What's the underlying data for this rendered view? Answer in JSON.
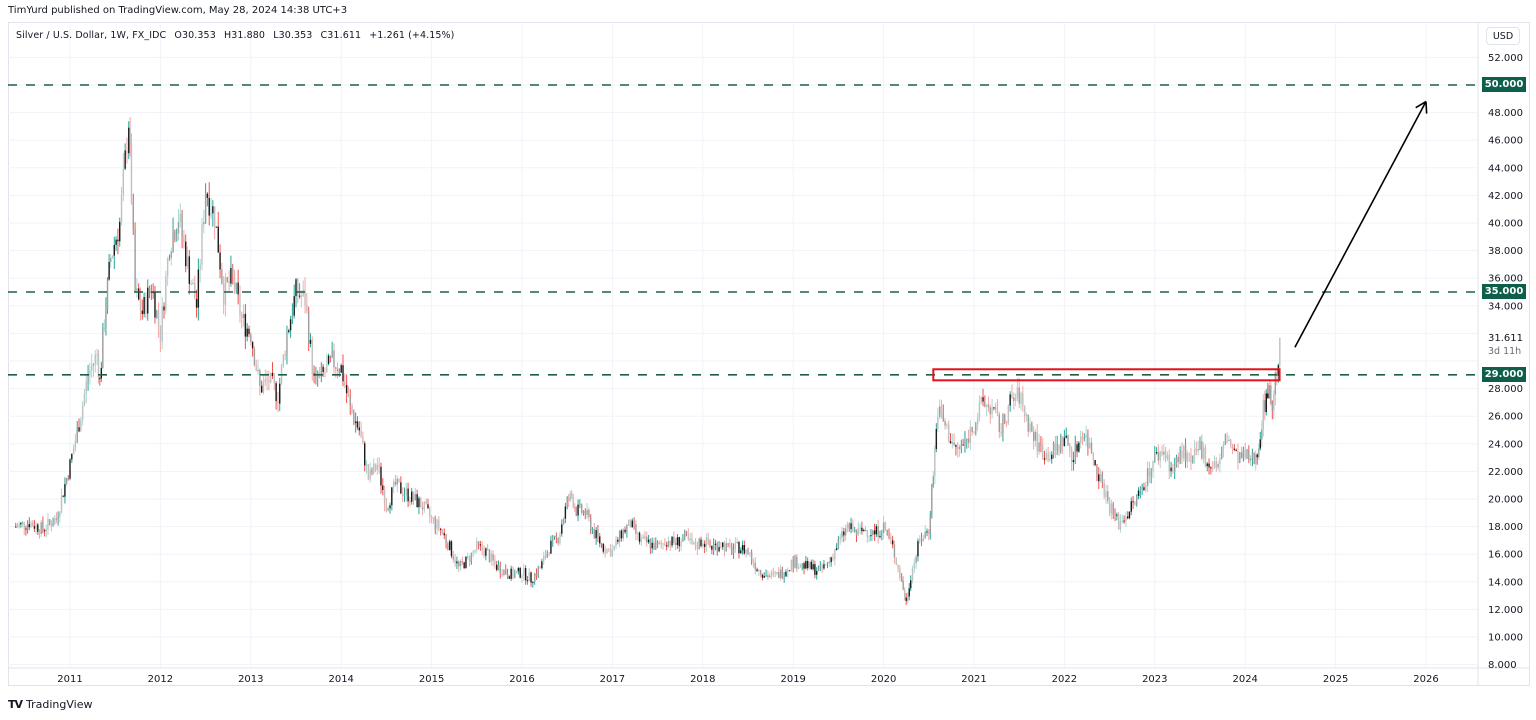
{
  "header": {
    "publisher_line": "TimYurd published on TradingView.com, May 28, 2024 14:38 UTC+3"
  },
  "legend": {
    "symbol": "Silver / U.S. Dollar, 1W, FX_IDC",
    "open": "O30.353",
    "high": "H31.880",
    "low": "L30.353",
    "close": "C31.611",
    "change": "+1.261 (+4.15%)"
  },
  "price_axis": {
    "currency_button": "USD",
    "ticks": [
      "52.000",
      "50.000",
      "48.000",
      "46.000",
      "44.000",
      "42.000",
      "40.000",
      "38.000",
      "36.000",
      "34.000",
      "32.000",
      "30.000",
      "28.000",
      "26.000",
      "24.000",
      "22.000",
      "20.000",
      "18.000",
      "16.000",
      "14.000",
      "12.000",
      "10.000",
      "8.000"
    ],
    "last_price": "31.611",
    "countdown": "3d 11h",
    "level_badges": [
      {
        "label": "50.000",
        "value": 50
      },
      {
        "label": "35.000",
        "value": 35
      },
      {
        "label": "29.000",
        "value": 29
      }
    ]
  },
  "time_axis": {
    "ticks": [
      "2011",
      "2012",
      "2013",
      "2014",
      "2015",
      "2016",
      "2017",
      "2018",
      "2019",
      "2020",
      "2021",
      "2022",
      "2023",
      "2024",
      "2025",
      "2026"
    ]
  },
  "footer": {
    "logo_text": "TV",
    "brand": "TradingView"
  },
  "colors": {
    "up": "#26a69a",
    "down": "#ef5350",
    "neutral_body": "#9e9e9e",
    "level_line": "#1e5e4a",
    "badge_bg": "#0e5e4b",
    "zone_border": "#e3111b",
    "arrow": "#000000",
    "grid": "#f0f3fa"
  },
  "chart_data": {
    "type": "candlestick",
    "title": "Silver / U.S. Dollar, 1W, FX_IDC",
    "xlabel": "",
    "ylabel": "USD",
    "ylim": [
      8,
      52
    ],
    "grid": true,
    "legend_position": "top-left",
    "last": {
      "open": 30.353,
      "high": 31.88,
      "low": 30.353,
      "close": 31.611,
      "change": 1.261,
      "change_pct": 4.15
    },
    "horizontal_levels": [
      50,
      35,
      29
    ],
    "resistance_zone": {
      "x_start": "2020.55",
      "x_end": "2024.38",
      "y_low": 28.6,
      "y_high": 29.4
    },
    "arrow": {
      "from": {
        "t": 2024.55,
        "p": 31.0
      },
      "to": {
        "t": 2026.0,
        "p": 48.8
      }
    },
    "approx_series": {
      "t": [
        2010.4,
        2010.55,
        2010.7,
        2010.85,
        2011.0,
        2011.1,
        2011.2,
        2011.3,
        2011.33,
        2011.38,
        2011.45,
        2011.55,
        2011.65,
        2011.68,
        2011.72,
        2011.8,
        2011.9,
        2012.0,
        2012.1,
        2012.2,
        2012.3,
        2012.4,
        2012.5,
        2012.6,
        2012.7,
        2012.8,
        2012.9,
        2013.0,
        2013.1,
        2013.2,
        2013.3,
        2013.4,
        2013.5,
        2013.6,
        2013.7,
        2013.8,
        2013.9,
        2014.0,
        2014.1,
        2014.2,
        2014.3,
        2014.4,
        2014.5,
        2014.6,
        2014.7,
        2014.8,
        2014.9,
        2015.0,
        2015.1,
        2015.2,
        2015.3,
        2015.4,
        2015.5,
        2015.6,
        2015.7,
        2015.8,
        2015.9,
        2016.0,
        2016.1,
        2016.2,
        2016.3,
        2016.4,
        2016.5,
        2016.55,
        2016.6,
        2016.7,
        2016.8,
        2016.9,
        2017.0,
        2017.1,
        2017.2,
        2017.3,
        2017.4,
        2017.5,
        2017.6,
        2017.7,
        2017.8,
        2017.9,
        2018.0,
        2018.1,
        2018.2,
        2018.3,
        2018.4,
        2018.5,
        2018.6,
        2018.7,
        2018.8,
        2018.9,
        2019.0,
        2019.1,
        2019.2,
        2019.3,
        2019.4,
        2019.5,
        2019.6,
        2019.7,
        2019.8,
        2019.9,
        2020.0,
        2020.1,
        2020.2,
        2020.25,
        2020.3,
        2020.4,
        2020.5,
        2020.55,
        2020.6,
        2020.7,
        2020.8,
        2020.9,
        2021.0,
        2021.1,
        2021.2,
        2021.3,
        2021.4,
        2021.5,
        2021.6,
        2021.7,
        2021.8,
        2021.9,
        2022.0,
        2022.1,
        2022.2,
        2022.3,
        2022.4,
        2022.5,
        2022.6,
        2022.7,
        2022.8,
        2022.9,
        2023.0,
        2023.1,
        2023.2,
        2023.3,
        2023.4,
        2023.5,
        2023.6,
        2023.7,
        2023.8,
        2023.9,
        2024.0,
        2024.1,
        2024.15,
        2024.2,
        2024.25,
        2024.3,
        2024.35,
        2024.4
      ],
      "close": [
        18.0,
        18.3,
        17.8,
        18.6,
        22.5,
        25.5,
        29.0,
        30.5,
        28.5,
        33.0,
        37.5,
        40.0,
        47.5,
        42.0,
        35.0,
        33.5,
        35.5,
        32.0,
        38.5,
        40.5,
        37.0,
        34.0,
        42.5,
        40.5,
        35.0,
        36.0,
        33.0,
        32.0,
        28.0,
        28.6,
        27.5,
        32.0,
        35.0,
        34.5,
        28.5,
        29.0,
        30.0,
        29.5,
        26.5,
        25.0,
        21.5,
        22.5,
        19.5,
        21.0,
        20.5,
        20.0,
        19.5,
        18.5,
        17.8,
        16.5,
        15.0,
        15.6,
        16.5,
        16.2,
        15.2,
        14.8,
        14.5,
        14.7,
        14.2,
        15.0,
        16.5,
        17.2,
        19.8,
        20.2,
        19.2,
        19.0,
        17.5,
        16.5,
        16.2,
        17.5,
        18.2,
        17.0,
        16.8,
        16.5,
        17.0,
        16.8,
        17.2,
        16.5,
        17.0,
        16.5,
        16.8,
        16.3,
        16.5,
        16.2,
        15.0,
        14.5,
        14.4,
        14.8,
        15.5,
        15.2,
        15.0,
        14.8,
        15.5,
        16.8,
        18.0,
        17.5,
        17.8,
        17.5,
        18.0,
        16.5,
        14.0,
        12.5,
        14.5,
        17.0,
        17.8,
        22.0,
        26.5,
        25.0,
        23.5,
        24.0,
        25.5,
        27.0,
        26.5,
        25.0,
        27.0,
        27.5,
        25.5,
        24.0,
        23.2,
        23.5,
        24.5,
        23.0,
        25.0,
        23.5,
        21.5,
        19.5,
        18.2,
        19.0,
        20.0,
        21.5,
        23.0,
        23.5,
        22.0,
        23.5,
        22.5,
        23.8,
        22.5,
        22.5,
        24.5,
        23.0,
        23.0,
        22.8,
        24.0,
        26.5,
        28.0,
        26.8,
        29.5,
        31.6
      ]
    }
  }
}
